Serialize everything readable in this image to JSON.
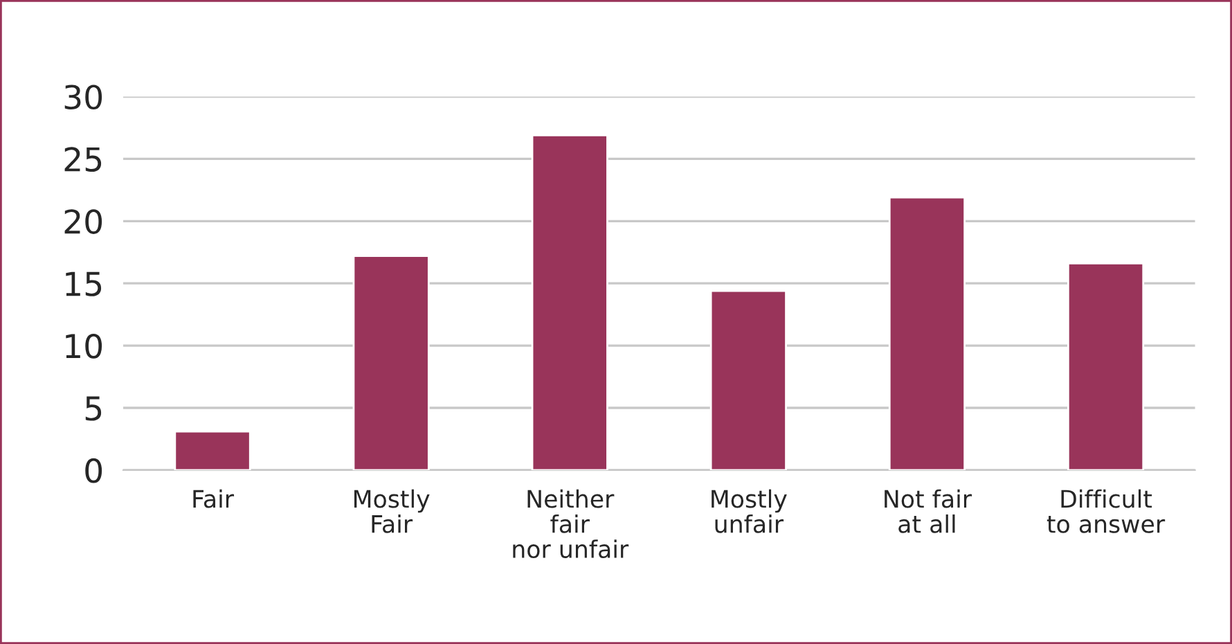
{
  "chart_data": {
    "type": "bar",
    "categories": [
      "Fair",
      "Mostly\nFair",
      "Neither\nfair\nnor unfair",
      "Mostly\nunfair",
      "Not fair\nat all",
      "Difficult\nto answer"
    ],
    "values": [
      3.1,
      17.2,
      26.9,
      14.4,
      21.9,
      16.6
    ],
    "color": "#99345a",
    "ylim": [
      0,
      30
    ],
    "yticks": [
      0,
      5,
      10,
      15,
      20,
      25,
      30
    ],
    "grid": "y"
  }
}
